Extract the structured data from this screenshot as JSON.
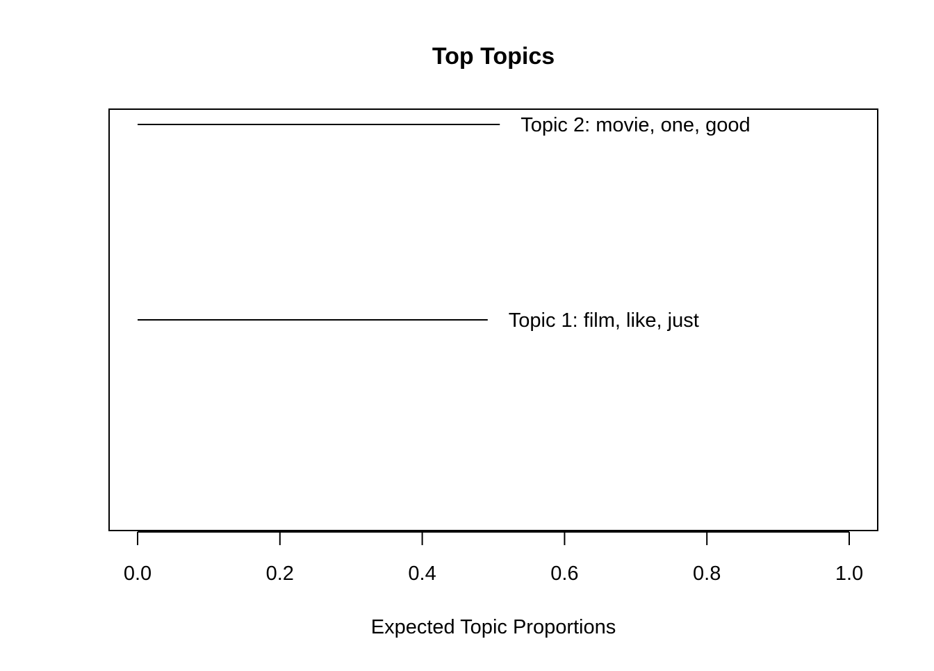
{
  "chart_data": {
    "type": "bar",
    "title": "Top Topics",
    "xlabel": "Expected Topic Proportions",
    "ylabel": "",
    "xlim": [
      0,
      1
    ],
    "xticks": [
      "0.0",
      "0.2",
      "0.4",
      "0.6",
      "0.8",
      "1.0"
    ],
    "grid": false,
    "orientation": "horizontal",
    "categories": [
      "Topic 1: film, like, just",
      "Topic 2: movie, one, good"
    ],
    "values": [
      0.492,
      0.509
    ],
    "colors": {
      "line": "#000000",
      "background": "#ffffff"
    }
  }
}
